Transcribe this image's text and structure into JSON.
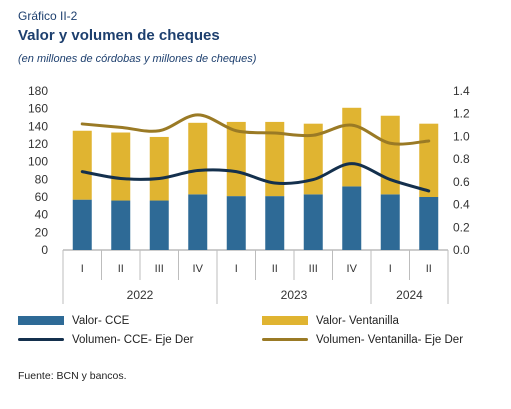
{
  "header": {
    "label": "Gráfico II-2",
    "title": "Valor y volumen de cheques",
    "subtitle": "(en millones de córdobas y millones de cheques)"
  },
  "source": "Fuente: BCN y bancos.",
  "colors": {
    "cce_bar": "#2e6a96",
    "ventanilla_bar": "#e0b431",
    "cce_line": "#14304d",
    "ventanilla_line": "#9a7a25"
  },
  "chart_data": {
    "type": "bar",
    "stacked": true,
    "categories": [
      "I",
      "II",
      "III",
      "IV",
      "I",
      "II",
      "III",
      "IV",
      "I",
      "II"
    ],
    "year_groups": [
      {
        "label": "2022",
        "count": 4
      },
      {
        "label": "2023",
        "count": 4
      },
      {
        "label": "2024",
        "count": 2
      }
    ],
    "series": [
      {
        "name": "Valor- CCE",
        "type": "bar",
        "axis": "left",
        "values": [
          57,
          56,
          56,
          63,
          61,
          61,
          63,
          72,
          63,
          60
        ]
      },
      {
        "name": "Valor- Ventanilla",
        "type": "bar",
        "axis": "left",
        "values": [
          78,
          77,
          72,
          81,
          84,
          84,
          80,
          89,
          89,
          83
        ]
      },
      {
        "name": "Volumen- CCE- Eje Der",
        "type": "line",
        "axis": "right",
        "values": [
          0.69,
          0.63,
          0.63,
          0.7,
          0.69,
          0.59,
          0.62,
          0.76,
          0.62,
          0.52
        ]
      },
      {
        "name": "Volumen- Ventanilla- Eje Der",
        "type": "line",
        "axis": "right",
        "values": [
          1.11,
          1.08,
          1.05,
          1.19,
          1.05,
          1.03,
          1.01,
          1.1,
          0.94,
          0.96
        ]
      }
    ],
    "ylim": [
      0,
      180
    ],
    "yticks": [
      0,
      20,
      40,
      60,
      80,
      100,
      120,
      140,
      160,
      180
    ],
    "y2lim": [
      0,
      1.4
    ],
    "y2ticks": [
      "0.0",
      "0.2",
      "0.4",
      "0.6",
      "0.8",
      "1.0",
      "1.2",
      "1.4"
    ],
    "grid": false,
    "legend_position": "bottom"
  }
}
